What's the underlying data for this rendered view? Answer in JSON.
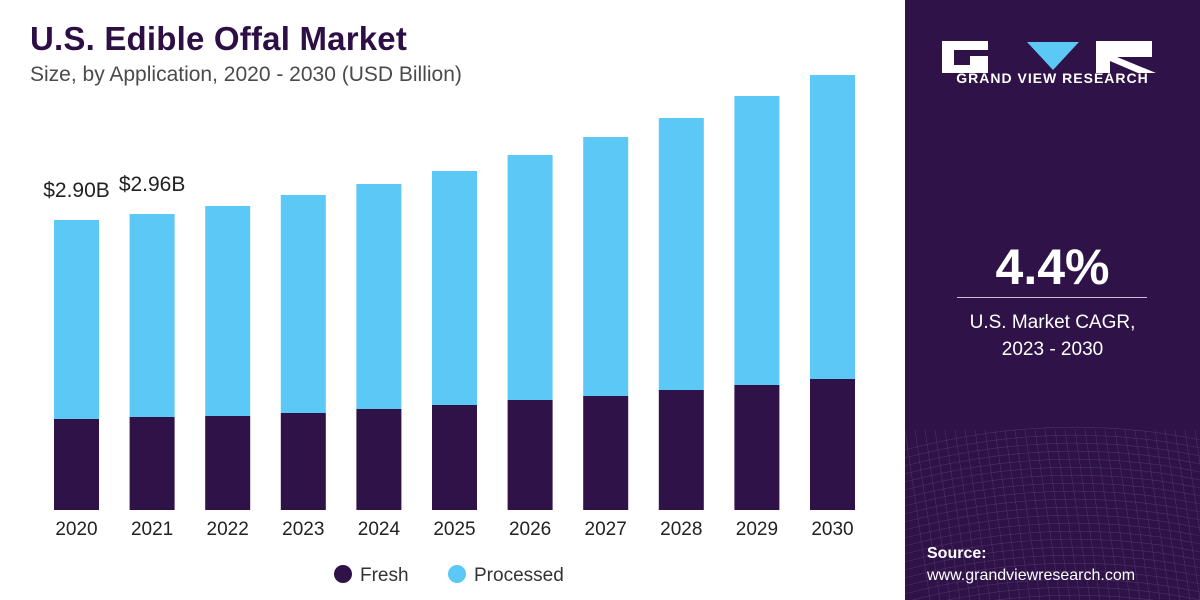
{
  "title": "U.S. Edible Offal Market",
  "subtitle": "Size, by Application, 2020 - 2030 (USD Billion)",
  "chart_data": {
    "type": "bar",
    "stacked": true,
    "categories": [
      "2020",
      "2021",
      "2022",
      "2023",
      "2024",
      "2025",
      "2026",
      "2027",
      "2028",
      "2029",
      "2030"
    ],
    "series": [
      {
        "name": "Fresh",
        "color": "#2f1247",
        "values": [
          0.91,
          0.93,
          0.94,
          0.97,
          1.01,
          1.05,
          1.1,
          1.14,
          1.2,
          1.25,
          1.31
        ]
      },
      {
        "name": "Processed",
        "color": "#5bc8f5",
        "values": [
          1.99,
          2.03,
          2.1,
          2.18,
          2.25,
          2.34,
          2.45,
          2.59,
          2.72,
          2.89,
          3.04
        ]
      }
    ],
    "data_labels": [
      {
        "category": "2020",
        "text": "$2.90B"
      },
      {
        "category": "2021",
        "text": "$2.96B"
      }
    ],
    "ylim": [
      0,
      4.5
    ],
    "grid": false,
    "legend_position": "bottom"
  },
  "brand": {
    "name": "GRAND VIEW RESEARCH"
  },
  "cagr": {
    "value": "4.4%",
    "label_line1": "U.S. Market CAGR,",
    "label_line2": "2023 - 2030"
  },
  "source": {
    "title": "Source:",
    "url": "www.grandviewresearch.com"
  }
}
